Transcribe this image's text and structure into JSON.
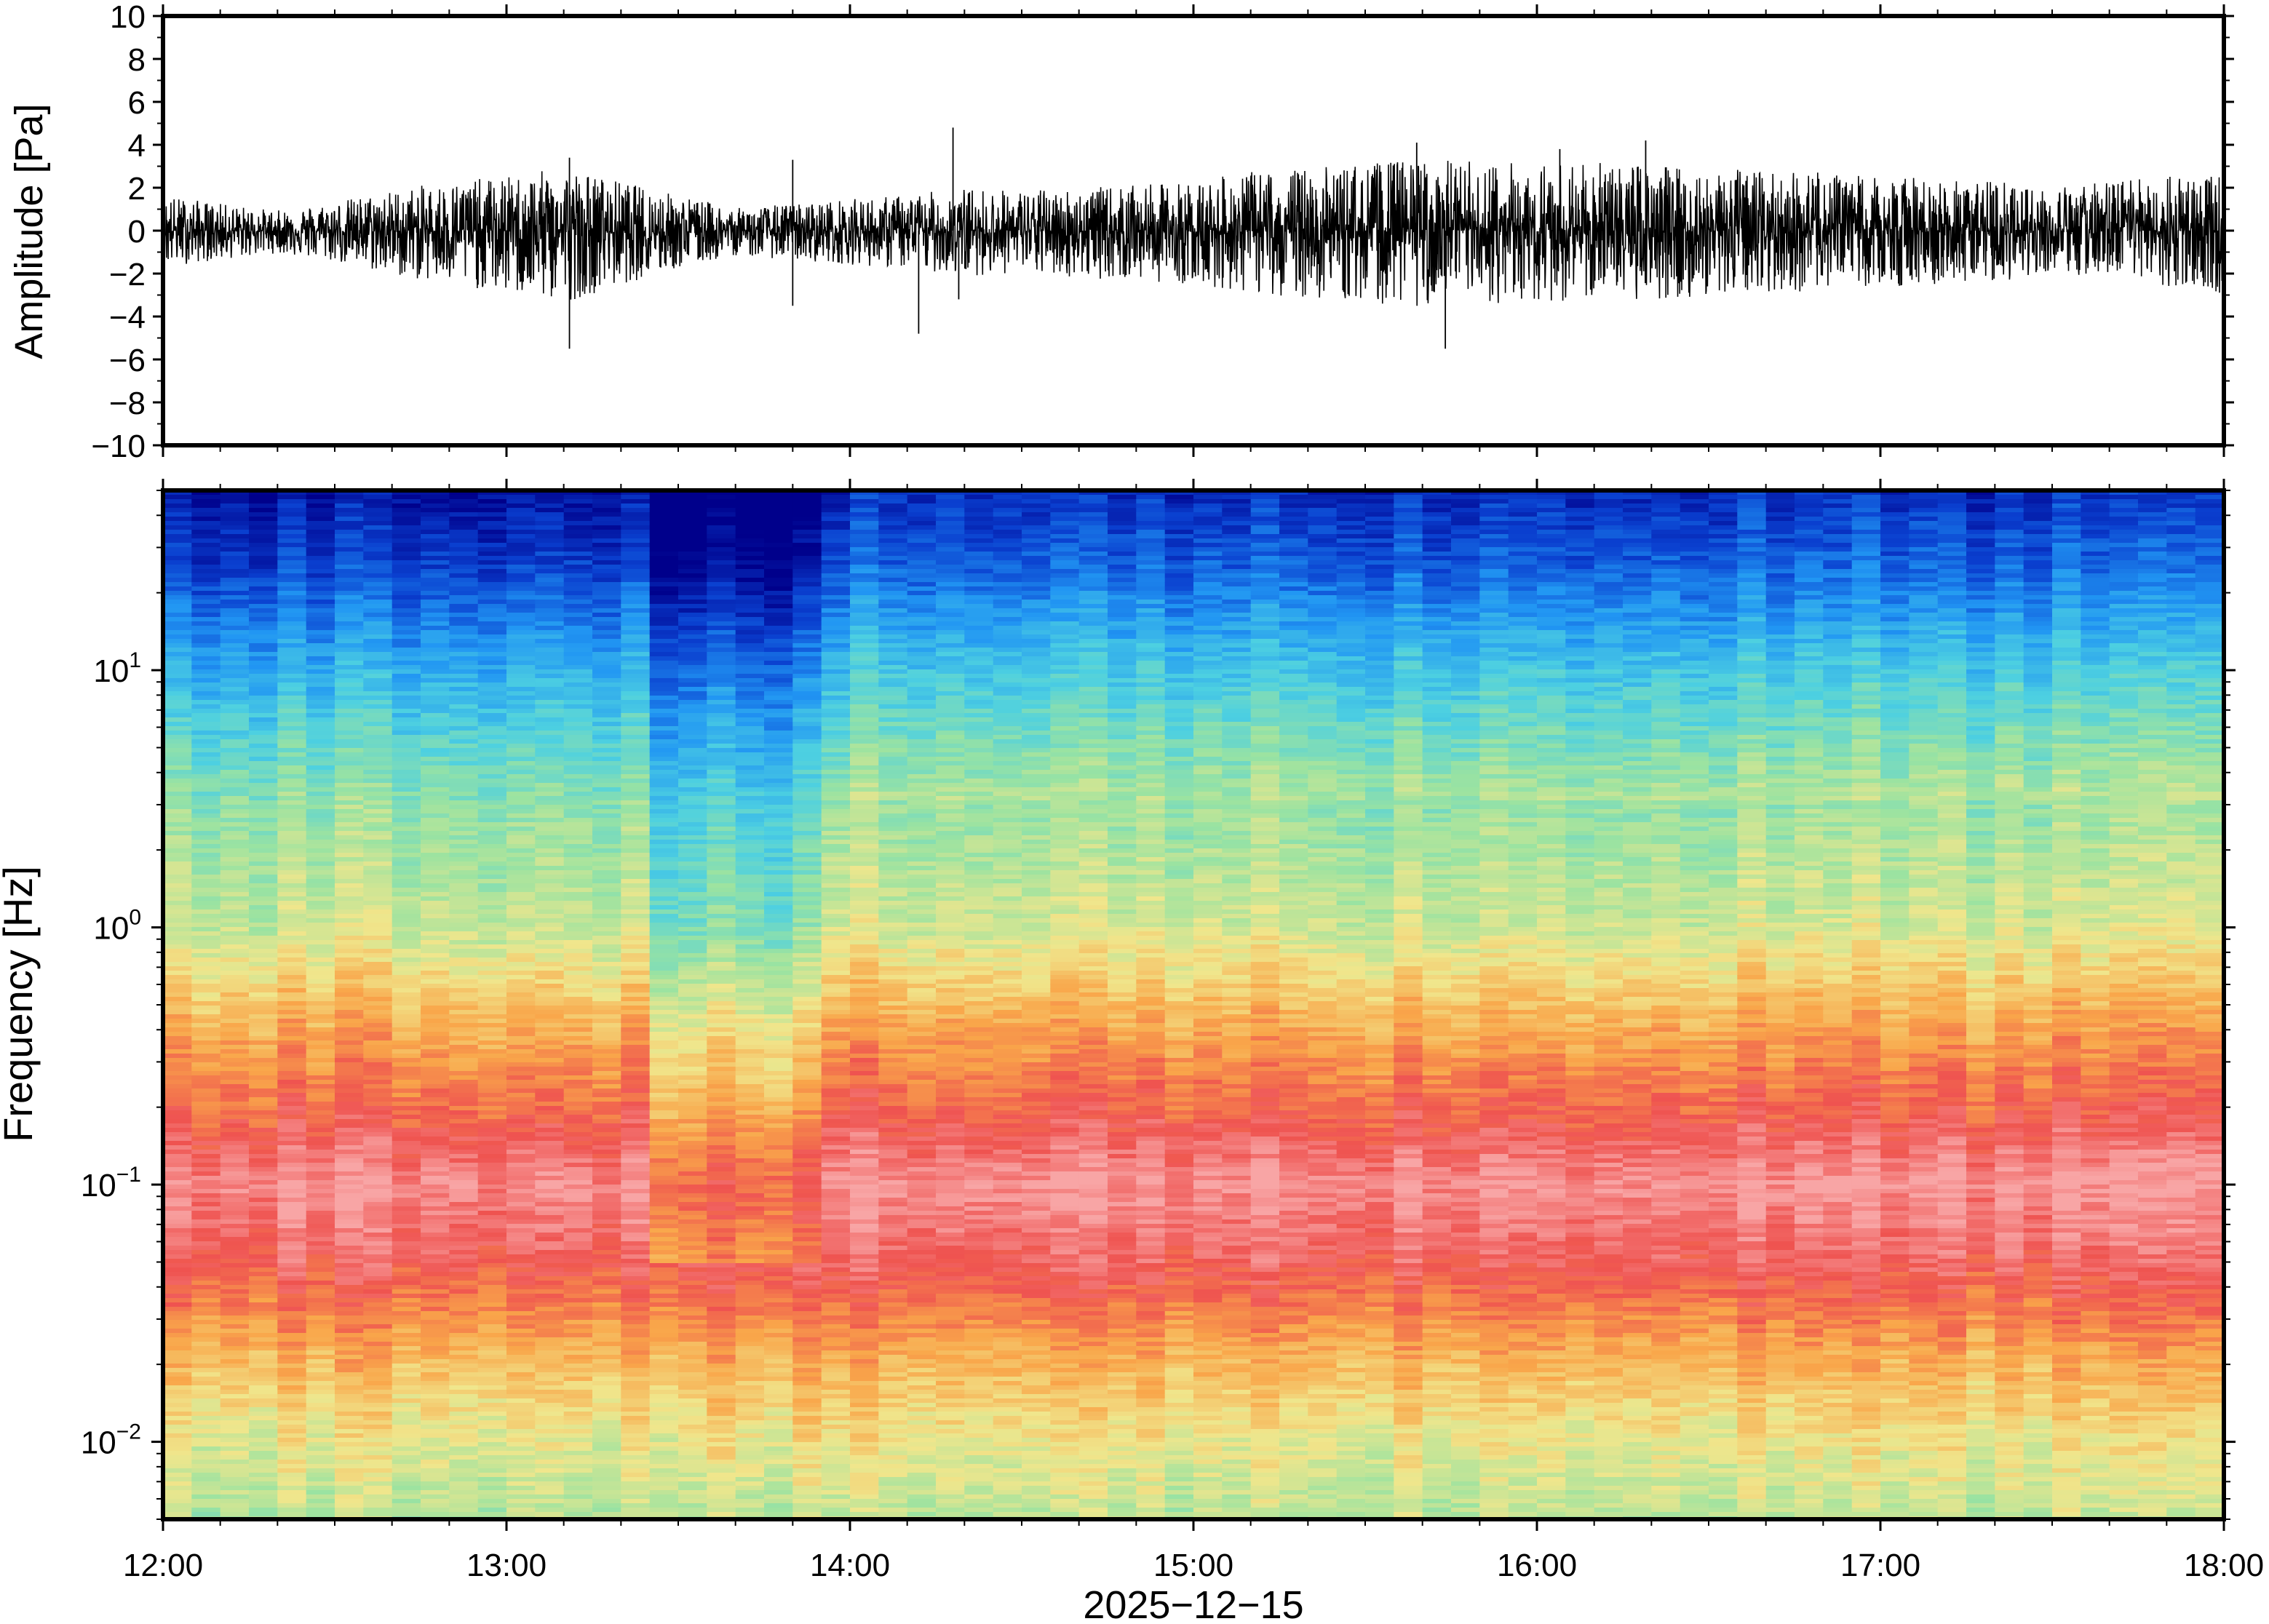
{
  "figure": {
    "date_label": "2025−12−15"
  },
  "chart_data": [
    {
      "type": "line",
      "panel": "waveform",
      "xlabel": "",
      "ylabel": "Amplitude [Pa]",
      "xlim": [
        "12:00",
        "18:00"
      ],
      "ylim": [
        -10,
        10
      ],
      "yticks": [
        -10,
        -8,
        -6,
        -4,
        -2,
        0,
        2,
        4,
        6,
        8,
        10
      ],
      "ytick_labels": [
        "−10",
        "−8",
        "−6",
        "−4",
        "−2",
        "0",
        "2",
        "4",
        "6",
        "8",
        "10"
      ],
      "series_color": "#000000",
      "envelope": {
        "x": [
          "12:00",
          "12:10",
          "12:20",
          "12:30",
          "12:40",
          "12:50",
          "13:00",
          "13:10",
          "13:20",
          "13:30",
          "13:40",
          "13:50",
          "14:00",
          "14:10",
          "14:20",
          "14:30",
          "14:40",
          "14:50",
          "15:00",
          "15:10",
          "15:20",
          "15:30",
          "15:40",
          "15:50",
          "16:00",
          "16:10",
          "16:20",
          "16:30",
          "16:40",
          "16:50",
          "17:00",
          "17:10",
          "17:20",
          "17:30",
          "17:40",
          "17:50",
          "18:00"
        ],
        "max": [
          1.6,
          1.2,
          0.9,
          1.3,
          1.8,
          2.2,
          2.4,
          2.8,
          2.2,
          1.6,
          1.0,
          1.2,
          1.4,
          1.6,
          1.9,
          1.8,
          1.9,
          2.0,
          2.2,
          2.6,
          2.8,
          3.0,
          3.2,
          3.1,
          3.1,
          3.0,
          3.0,
          2.8,
          2.6,
          2.6,
          2.4,
          2.3,
          2.2,
          2.0,
          2.2,
          2.4,
          2.6
        ],
        "min": [
          -1.6,
          -1.3,
          -1.0,
          -1.4,
          -2.0,
          -2.4,
          -2.8,
          -3.2,
          -2.4,
          -1.7,
          -1.1,
          -1.3,
          -1.5,
          -1.7,
          -2.0,
          -1.9,
          -2.1,
          -2.2,
          -2.4,
          -2.8,
          -3.0,
          -3.2,
          -3.4,
          -3.3,
          -3.2,
          -3.1,
          -3.1,
          -2.9,
          -2.7,
          -2.7,
          -2.5,
          -2.4,
          -2.3,
          -2.1,
          -2.3,
          -2.6,
          -2.8
        ]
      },
      "spikes": [
        {
          "x": "13:11",
          "y": -5.5
        },
        {
          "x": "13:11",
          "y": 3.4
        },
        {
          "x": "13:50",
          "y": 3.3
        },
        {
          "x": "13:50",
          "y": -3.5
        },
        {
          "x": "14:12",
          "y": -4.8
        },
        {
          "x": "14:18",
          "y": 4.8
        },
        {
          "x": "14:19",
          "y": -3.2
        },
        {
          "x": "15:39",
          "y": 4.1
        },
        {
          "x": "15:44",
          "y": -5.5
        },
        {
          "x": "16:04",
          "y": 3.8
        },
        {
          "x": "16:19",
          "y": 4.2
        }
      ]
    },
    {
      "type": "heatmap",
      "panel": "spectrogram",
      "xlabel": "2025−12−15",
      "ylabel": "Frequency [Hz]",
      "xlim": [
        "12:00",
        "18:00"
      ],
      "xticks": [
        "12:00",
        "13:00",
        "14:00",
        "15:00",
        "16:00",
        "17:00",
        "18:00"
      ],
      "yscale": "log",
      "ylim": [
        0.005,
        50
      ],
      "yticks": [
        0.01,
        0.1,
        1,
        10
      ],
      "ytick_labels": [
        {
          "base": "10",
          "exp": "−2"
        },
        {
          "base": "10",
          "exp": "−1"
        },
        {
          "base": "10",
          "exp": "0"
        },
        {
          "base": "10",
          "exp": "1"
        }
      ],
      "colormap": [
        "#00008b",
        "#0a3fcf",
        "#2196f3",
        "#4dd0e1",
        "#9be3a1",
        "#f0e68c",
        "#f9a64a",
        "#ef5350",
        "#f8a5a5"
      ],
      "color_scale": "relative power, low to high",
      "frequency_profile": {
        "frequency_hz": [
          0.005,
          0.01,
          0.02,
          0.05,
          0.1,
          0.2,
          0.4,
          1,
          3,
          10,
          25,
          50
        ],
        "relative_level": [
          0.55,
          0.62,
          0.72,
          0.9,
          0.98,
          0.85,
          0.75,
          0.58,
          0.5,
          0.32,
          0.14,
          0.05
        ]
      },
      "quiet_interval": {
        "start": "13:25",
        "end": "13:55"
      }
    }
  ]
}
